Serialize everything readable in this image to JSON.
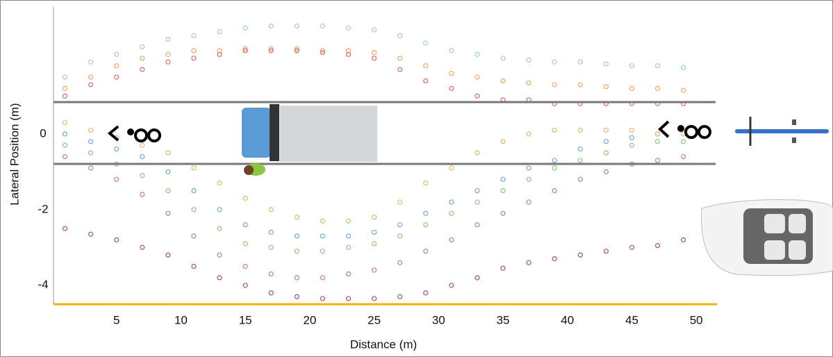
{
  "chart_data": {
    "type": "scatter",
    "xlabel": "Distance (m)",
    "ylabel": "Lateral Position (m)",
    "xlim": [
      0,
      51.5
    ],
    "ylim": [
      -4.5,
      3.4
    ],
    "xticks": [
      5,
      10,
      15,
      20,
      25,
      30,
      35,
      40,
      45,
      50
    ],
    "yticks": [
      -4,
      -2,
      0
    ],
    "x": [
      1,
      3,
      5,
      7,
      9,
      11,
      13,
      15,
      17,
      19,
      21,
      23,
      25,
      27,
      29,
      31,
      33,
      35,
      37,
      39,
      41,
      43,
      45,
      47,
      49
    ],
    "series": [
      {
        "color": "#9ecae1",
        "values": [
          1.5,
          1.9,
          2.1,
          2.3,
          2.5,
          2.6,
          2.7,
          2.8,
          2.85,
          2.85,
          2.85,
          2.8,
          2.75,
          2.6,
          2.4,
          2.2,
          2.1,
          2.0,
          1.95,
          1.9,
          1.9,
          1.85,
          1.8,
          1.8,
          1.75
        ]
      },
      {
        "color": "#f4a460",
        "values": [
          1.2,
          1.5,
          1.8,
          2.0,
          2.1,
          2.2,
          2.2,
          2.25,
          2.25,
          2.25,
          2.2,
          2.2,
          2.15,
          2.0,
          1.8,
          1.6,
          1.5,
          1.4,
          1.35,
          1.3,
          1.3,
          1.25,
          1.2,
          1.2,
          1.15
        ]
      },
      {
        "color": "#e06666",
        "values": [
          1.0,
          1.3,
          1.5,
          1.7,
          1.9,
          2.0,
          2.1,
          2.2,
          2.2,
          2.2,
          2.15,
          2.1,
          2.0,
          1.7,
          1.4,
          1.2,
          1.0,
          0.9,
          0.9,
          0.8,
          0.8,
          0.8,
          0.8,
          0.8,
          0.8
        ]
      },
      {
        "color": "#6fa8dc",
        "values": [
          0.0,
          -0.2,
          -0.4,
          -0.6,
          -1.0,
          -1.5,
          -2.0,
          -2.4,
          -2.6,
          -2.7,
          -2.7,
          -2.7,
          -2.6,
          -2.4,
          -2.1,
          -1.8,
          -1.5,
          -1.2,
          -0.9,
          -0.7,
          -0.4,
          -0.2,
          -0.1,
          0.0,
          0.0
        ]
      },
      {
        "color": "#93c47d",
        "values": [
          -0.3,
          -0.5,
          -0.8,
          -1.1,
          -1.5,
          -2.0,
          -2.5,
          -2.9,
          -3.0,
          -3.1,
          -3.1,
          -3.0,
          -2.9,
          -2.7,
          -2.4,
          -2.1,
          -1.8,
          -1.5,
          -1.2,
          -0.9,
          -0.7,
          -0.5,
          -0.3,
          -0.2,
          -0.2
        ]
      },
      {
        "color": "#c27ba0",
        "values": [
          -0.6,
          -0.9,
          -1.2,
          -1.6,
          -2.1,
          -2.7,
          -3.2,
          -3.5,
          -3.7,
          -3.8,
          -3.8,
          -3.7,
          -3.6,
          -3.4,
          -3.1,
          -2.8,
          -2.4,
          -2.1,
          -1.8,
          -1.5,
          -1.2,
          -1.0,
          -0.8,
          -0.7,
          -0.6
        ]
      },
      {
        "color": "#a64d79",
        "values": [
          -2.5,
          -2.65,
          -2.8,
          -3.0,
          -3.2,
          -3.5,
          -3.8,
          -4.0,
          -4.2,
          -4.3,
          -4.35,
          -4.35,
          -4.35,
          -4.3,
          -4.2,
          -4.0,
          -3.8,
          -3.55,
          -3.4,
          -3.3,
          -3.2,
          -3.1,
          -3.0,
          -2.95,
          -2.8
        ]
      },
      {
        "color": "#e6b85c",
        "values": [
          0.3,
          0.1,
          -0.1,
          -0.3,
          -0.5,
          -0.9,
          -1.3,
          -1.7,
          -2.0,
          -2.2,
          -2.3,
          -2.3,
          -2.2,
          -1.8,
          -1.3,
          -0.9,
          -0.5,
          -0.2,
          0.0,
          0.1,
          0.1,
          0.1,
          0.1,
          0.0,
          0.0
        ]
      }
    ]
  }
}
